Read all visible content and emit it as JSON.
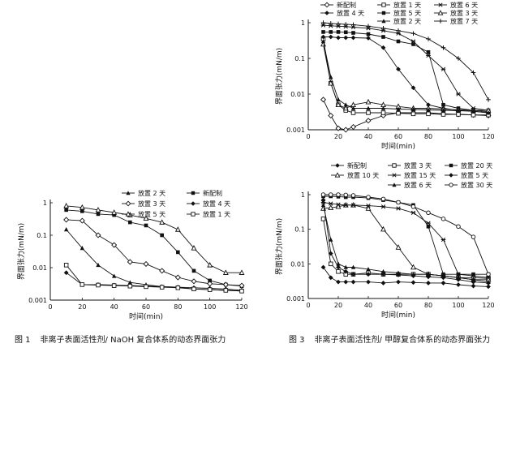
{
  "captions": [
    {
      "number": "图 1",
      "text": "非离子表面活性剂/ NaOH 复合体系的动态界面张力"
    },
    {
      "number": "图 3",
      "text": "非离子表面活性剂/ 甲醇复合体系的动态界面张力"
    }
  ],
  "chart_data": [
    {
      "type": "line",
      "xlabel": "时间(min)",
      "ylabel": "界面张力(mN/m)",
      "xlim": [
        0,
        120
      ],
      "ylim": [
        0.001,
        1
      ],
      "yscale": "log",
      "xticks": [
        0,
        20,
        40,
        60,
        80,
        100,
        120
      ],
      "yticks": [
        0.001,
        0.01,
        0.1,
        1
      ],
      "ytick_labels": [
        "0.001",
        "0.01",
        "0.1",
        "1"
      ],
      "legend_position": "top-right",
      "x": [
        10,
        20,
        30,
        40,
        50,
        60,
        70,
        80,
        90,
        100,
        110,
        120
      ],
      "series": [
        {
          "name": "新配制",
          "marker": "filled-square",
          "values": [
            0.6,
            0.55,
            0.45,
            0.42,
            0.25,
            0.2,
            0.1,
            0.03,
            0.008,
            0.004,
            0.003,
            0.0027
          ]
        },
        {
          "name": "放置 2 天",
          "marker": "filled-triangle",
          "values": [
            0.15,
            0.04,
            0.012,
            0.0055,
            0.0035,
            0.003,
            0.0026,
            0.0025,
            0.0022,
            0.0021,
            0.002,
            0.0019
          ]
        },
        {
          "name": "放置 3 天",
          "marker": "open-diamond",
          "values": [
            0.3,
            0.28,
            0.1,
            0.05,
            0.015,
            0.013,
            0.008,
            0.005,
            0.0038,
            0.0032,
            0.003,
            0.0028
          ]
        },
        {
          "name": "放置 4 天",
          "marker": "filled-diamond",
          "values": [
            0.007,
            0.003,
            0.003,
            0.0029,
            0.0028,
            0.0027,
            0.0026,
            0.0025,
            0.0024,
            0.0023,
            0.0022,
            0.002
          ]
        },
        {
          "name": "放置 1 天",
          "marker": "open-square",
          "values": [
            0.012,
            0.003,
            0.0029,
            0.0028,
            0.0027,
            0.0026,
            0.0025,
            0.0024,
            0.0022,
            0.0021,
            0.002,
            0.0019
          ]
        },
        {
          "name": "放置 5 天",
          "marker": "open-triangle",
          "values": [
            0.8,
            0.72,
            0.6,
            0.5,
            0.42,
            0.33,
            0.25,
            0.15,
            0.04,
            0.012,
            0.007,
            0.007
          ]
        }
      ]
    },
    {
      "type": "line",
      "xlabel": "时间(min)",
      "ylabel": "界面张力(mN/m)",
      "xlim": [
        0,
        120
      ],
      "ylim": [
        0.001,
        1
      ],
      "yscale": "log",
      "xticks": [
        0,
        20,
        40,
        60,
        80,
        100,
        120
      ],
      "yticks": [
        0.001,
        0.01,
        0.1,
        1
      ],
      "ytick_labels": [
        "0.001",
        "0.01",
        "0.1",
        "1"
      ],
      "legend_position": "top",
      "x": [
        10,
        15,
        20,
        25,
        30,
        40,
        50,
        60,
        70,
        80,
        90,
        100,
        110,
        120
      ],
      "series": [
        {
          "name": "新配制",
          "marker": "open-diamond",
          "values": [
            0.007,
            0.0025,
            0.0011,
            0.001,
            0.0012,
            0.0018,
            0.0025,
            0.003,
            0.003,
            0.003,
            0.0028,
            0.0027,
            0.0026,
            0.0025
          ]
        },
        {
          "name": "放置 1 天",
          "marker": "open-square",
          "values": [
            0.35,
            0.02,
            0.005,
            0.0035,
            0.003,
            0.003,
            0.003,
            0.0029,
            0.0028,
            0.0028,
            0.0027,
            0.0027,
            0.0026,
            0.0026
          ]
        },
        {
          "name": "放置 6 天",
          "marker": "star",
          "values": [
            0.85,
            0.82,
            0.8,
            0.78,
            0.75,
            0.7,
            0.6,
            0.5,
            0.3,
            0.12,
            0.05,
            0.01,
            0.004,
            0.0035
          ]
        },
        {
          "name": "放置 4 天",
          "marker": "filled-diamond",
          "values": [
            0.4,
            0.4,
            0.38,
            0.38,
            0.38,
            0.37,
            0.2,
            0.05,
            0.015,
            0.005,
            0.004,
            0.0035,
            0.0033,
            0.003
          ]
        },
        {
          "name": "放置 5 天",
          "marker": "filled-square",
          "values": [
            0.55,
            0.55,
            0.55,
            0.54,
            0.52,
            0.48,
            0.4,
            0.3,
            0.25,
            0.15,
            0.005,
            0.004,
            0.0035,
            0.0032
          ]
        },
        {
          "name": "放置 3 天",
          "marker": "open-triangle",
          "values": [
            0.25,
            0.02,
            0.005,
            0.004,
            0.005,
            0.006,
            0.005,
            0.0045,
            0.004,
            0.004,
            0.0038,
            0.0036,
            0.0035,
            0.0035
          ]
        },
        {
          "name": "放置 2 天",
          "marker": "filled-triangle",
          "values": [
            0.3,
            0.03,
            0.007,
            0.005,
            0.004,
            0.004,
            0.004,
            0.0038,
            0.0037,
            0.0036,
            0.0035,
            0.0034,
            0.0033,
            0.003
          ]
        },
        {
          "name": "放置 7 天",
          "marker": "plus",
          "values": [
            1,
            0.95,
            0.93,
            0.9,
            0.88,
            0.8,
            0.7,
            0.6,
            0.5,
            0.35,
            0.2,
            0.1,
            0.04,
            0.007
          ]
        }
      ]
    },
    {
      "type": "line",
      "xlabel": "时间(min)",
      "ylabel": "界面张力(mN/m)",
      "xlim": [
        0,
        120
      ],
      "ylim": [
        0.001,
        1
      ],
      "yscale": "log",
      "xticks": [
        0,
        20,
        40,
        60,
        80,
        100,
        120
      ],
      "yticks": [
        0.001,
        0.01,
        0.1,
        1
      ],
      "ytick_labels": [
        "0.001",
        "0.01",
        "0.1",
        "1"
      ],
      "legend_position": "top",
      "x": [
        10,
        15,
        20,
        25,
        30,
        40,
        50,
        60,
        70,
        80,
        90,
        100,
        110,
        120
      ],
      "series": [
        {
          "name": "新配制",
          "marker": "filled-diamond",
          "values": [
            0.008,
            0.004,
            0.003,
            0.003,
            0.003,
            0.003,
            0.0028,
            0.003,
            0.0029,
            0.0028,
            0.0028,
            0.0025,
            0.0023,
            0.0022
          ]
        },
        {
          "name": "放置 3 天",
          "marker": "open-square",
          "values": [
            0.2,
            0.01,
            0.006,
            0.005,
            0.005,
            0.0055,
            0.005,
            0.005,
            0.005,
            0.005,
            0.0045,
            0.004,
            0.004,
            0.0038
          ]
        },
        {
          "name": "放置 20 天",
          "marker": "filled-square",
          "values": [
            0.9,
            0.9,
            0.88,
            0.85,
            0.85,
            0.8,
            0.7,
            0.6,
            0.5,
            0.12,
            0.005,
            0.005,
            0.005,
            0.005
          ]
        },
        {
          "name": "放置 10 天",
          "marker": "open-triangle",
          "values": [
            0.4,
            0.42,
            0.45,
            0.5,
            0.5,
            0.4,
            0.1,
            0.03,
            0.008,
            0.005,
            0.0045,
            0.004,
            0.0035,
            0.0035
          ]
        },
        {
          "name": "放置 15 天",
          "marker": "star",
          "values": [
            0.6,
            0.55,
            0.52,
            0.5,
            0.5,
            0.48,
            0.45,
            0.4,
            0.3,
            0.15,
            0.05,
            0.005,
            0.0045,
            0.004
          ]
        },
        {
          "name": "放置 5 天",
          "marker": "filled-diamond",
          "values": [
            0.7,
            0.02,
            0.008,
            0.006,
            0.005,
            0.005,
            0.005,
            0.0048,
            0.0045,
            0.0042,
            0.004,
            0.0035,
            0.003,
            0.0028
          ]
        },
        {
          "name": "放置 6 天",
          "marker": "filled-triangle",
          "values": [
            0.5,
            0.05,
            0.01,
            0.008,
            0.008,
            0.007,
            0.006,
            0.0055,
            0.005,
            0.005,
            0.0045,
            0.004,
            0.0035,
            0.003
          ]
        },
        {
          "name": "放置 30 天",
          "marker": "open-circle",
          "values": [
            1,
            1,
            1,
            0.98,
            0.95,
            0.85,
            0.75,
            0.6,
            0.45,
            0.3,
            0.2,
            0.12,
            0.06,
            0.005
          ]
        }
      ]
    }
  ]
}
